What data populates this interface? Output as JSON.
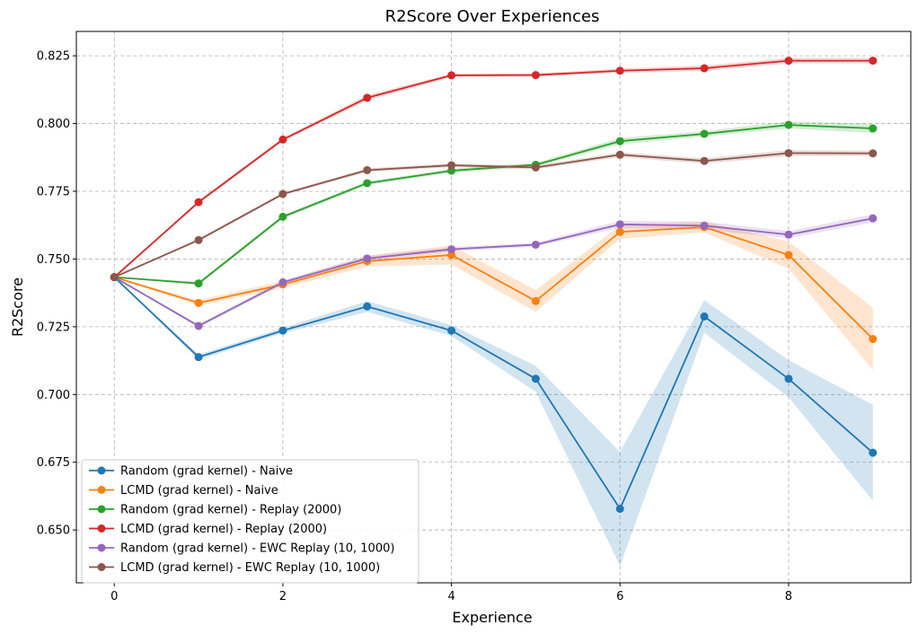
{
  "chart_data": {
    "type": "line",
    "title": "R2Score Over Experiences",
    "xlabel": "Experience",
    "ylabel": "R2Score",
    "xlim": [
      -0.45,
      9.45
    ],
    "ylim": [
      0.6305,
      0.834
    ],
    "xticks": [
      0,
      2,
      4,
      6,
      8
    ],
    "xtick_labels": [
      "0",
      "2",
      "4",
      "6",
      "8"
    ],
    "yticks": [
      0.65,
      0.675,
      0.7,
      0.725,
      0.75,
      0.775,
      0.8,
      0.825
    ],
    "ytick_labels": [
      "0.650",
      "0.675",
      "0.700",
      "0.725",
      "0.750",
      "0.775",
      "0.800",
      "0.825"
    ],
    "grid": true,
    "legend_position": "lower-left",
    "x": [
      0,
      1,
      2,
      3,
      4,
      5,
      6,
      7,
      8,
      9
    ],
    "series": [
      {
        "name": "Random (grad kernel) - Naive",
        "color": "#1f77b4",
        "values": [
          0.7433,
          0.7138,
          0.7236,
          0.7325,
          0.7236,
          0.7058,
          0.6578,
          0.7288,
          0.7058,
          0.6785
        ],
        "lower": [
          0.7433,
          0.7128,
          0.7226,
          0.7305,
          0.7216,
          0.701,
          0.6368,
          0.7228,
          0.699,
          0.6608
        ],
        "upper": [
          0.7433,
          0.7148,
          0.7246,
          0.7345,
          0.7256,
          0.7106,
          0.6788,
          0.7348,
          0.7126,
          0.6962
        ]
      },
      {
        "name": "LCMD (grad kernel) - Naive",
        "color": "#ff7f0e",
        "values": [
          0.7433,
          0.7338,
          0.7406,
          0.7492,
          0.7515,
          0.7345,
          0.76,
          0.7618,
          0.7515,
          0.7205
        ],
        "lower": [
          0.7433,
          0.7328,
          0.7393,
          0.7472,
          0.748,
          0.7305,
          0.7575,
          0.7598,
          0.7465,
          0.709
        ],
        "upper": [
          0.7433,
          0.7348,
          0.7419,
          0.7512,
          0.755,
          0.7385,
          0.7625,
          0.7638,
          0.7565,
          0.732
        ]
      },
      {
        "name": "Random (grad kernel) - Replay (2000)",
        "color": "#2ca02c",
        "values": [
          0.7433,
          0.741,
          0.7656,
          0.778,
          0.7826,
          0.7848,
          0.7935,
          0.7962,
          0.7995,
          0.7982
        ],
        "lower": [
          0.7433,
          0.7403,
          0.7649,
          0.7773,
          0.7819,
          0.7841,
          0.7923,
          0.7952,
          0.7982,
          0.7965
        ],
        "upper": [
          0.7433,
          0.7417,
          0.7663,
          0.7787,
          0.7833,
          0.7855,
          0.7947,
          0.7972,
          0.8008,
          0.7999
        ]
      },
      {
        "name": "LCMD (grad kernel) - Replay (2000)",
        "color": "#d62728",
        "values": [
          0.7433,
          0.771,
          0.7941,
          0.8095,
          0.8178,
          0.8179,
          0.8195,
          0.8204,
          0.8232,
          0.8232
        ],
        "lower": [
          0.7433,
          0.7704,
          0.7935,
          0.8085,
          0.8172,
          0.8173,
          0.8187,
          0.8194,
          0.8222,
          0.8222
        ],
        "upper": [
          0.7433,
          0.7716,
          0.7947,
          0.8105,
          0.8184,
          0.8185,
          0.8203,
          0.8214,
          0.8242,
          0.8242
        ]
      },
      {
        "name": "Random (grad kernel) - EWC Replay (10, 1000)",
        "color": "#9467bd",
        "values": [
          0.7433,
          0.7253,
          0.7414,
          0.7502,
          0.7536,
          0.7553,
          0.7628,
          0.7623,
          0.759,
          0.765
        ],
        "lower": [
          0.7433,
          0.7246,
          0.7406,
          0.7492,
          0.7528,
          0.7546,
          0.7615,
          0.7608,
          0.7577,
          0.7635
        ],
        "upper": [
          0.7433,
          0.726,
          0.7422,
          0.7512,
          0.7544,
          0.756,
          0.7641,
          0.7638,
          0.7603,
          0.7665
        ]
      },
      {
        "name": "LCMD (grad kernel) - EWC Replay (10, 1000)",
        "color": "#8c564b",
        "values": [
          0.7433,
          0.757,
          0.774,
          0.7828,
          0.7846,
          0.7838,
          0.7885,
          0.7862,
          0.7891,
          0.789
        ],
        "lower": [
          0.7433,
          0.7565,
          0.7735,
          0.7821,
          0.7839,
          0.7831,
          0.7876,
          0.7852,
          0.788,
          0.788
        ],
        "upper": [
          0.7433,
          0.7575,
          0.7745,
          0.7835,
          0.7853,
          0.7845,
          0.7894,
          0.7872,
          0.7902,
          0.79
        ]
      }
    ]
  }
}
